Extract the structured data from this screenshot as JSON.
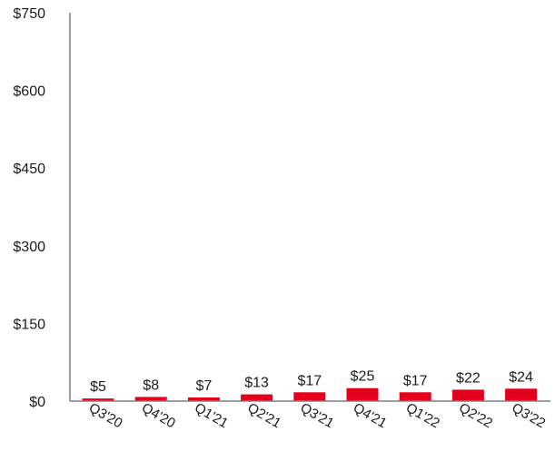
{
  "chart_data": {
    "type": "bar",
    "title": "",
    "xlabel": "",
    "ylabel": "",
    "categories": [
      "Q3'20",
      "Q4'20",
      "Q1'21",
      "Q2'21",
      "Q3'21",
      "Q4'21",
      "Q1'22",
      "Q2'22",
      "Q3'22"
    ],
    "values": [
      5,
      8,
      7,
      13,
      17,
      25,
      17,
      22,
      24
    ],
    "data_labels": [
      "$5",
      "$8",
      "$7",
      "$13",
      "$17",
      "$25",
      "$17",
      "$22",
      "$24"
    ],
    "ylim": [
      0,
      750
    ],
    "yticks": [
      0,
      150,
      300,
      450,
      600,
      750
    ],
    "ytick_labels": [
      "$0",
      "$150",
      "$300",
      "$450",
      "$600",
      "$750"
    ],
    "grid": false,
    "legend": "none",
    "colors": {
      "bar": "#e3001b",
      "axis": "#7f7f7f",
      "text": "#1a1a1a"
    }
  }
}
